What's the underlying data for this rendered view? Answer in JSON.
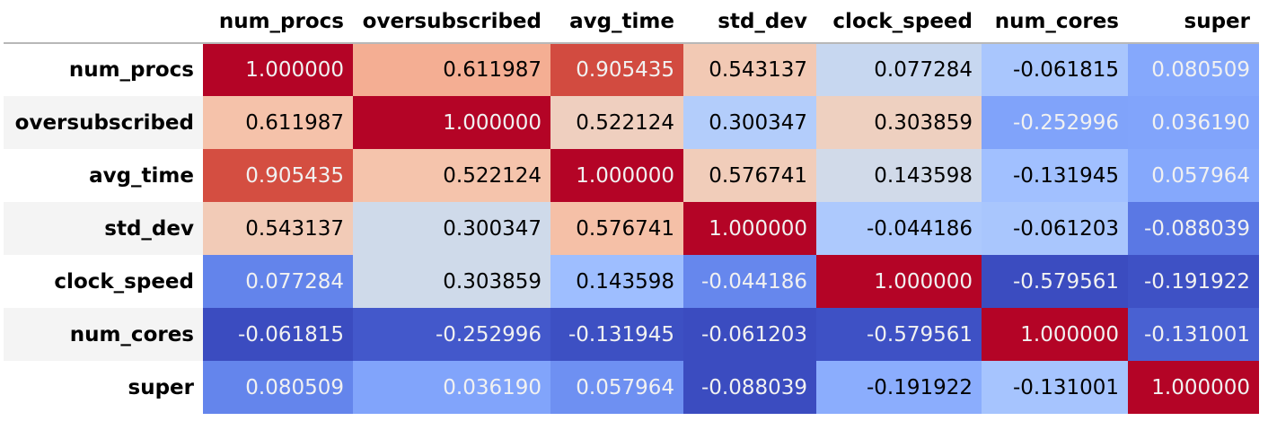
{
  "columns": [
    "num_procs",
    "oversubscribed",
    "avg_time",
    "std_dev",
    "clock_speed",
    "num_cores",
    "super"
  ],
  "rows": [
    {
      "label": "num_procs",
      "cells": [
        {
          "text": "1.000000",
          "bg": "#b40426",
          "fg": "#f1f1f1"
        },
        {
          "text": "0.611987",
          "bg": "#f4ae93",
          "fg": "#000000"
        },
        {
          "text": "0.905435",
          "bg": "#d24b40",
          "fg": "#f1f1f1"
        },
        {
          "text": "0.543137",
          "bg": "#f2c9b4",
          "fg": "#000000"
        },
        {
          "text": "0.077284",
          "bg": "#c7d7f0",
          "fg": "#000000"
        },
        {
          "text": "-0.061815",
          "bg": "#a9c6fd",
          "fg": "#000000"
        },
        {
          "text": "0.080509",
          "bg": "#85a8fc",
          "fg": "#f1f1f1"
        }
      ]
    },
    {
      "label": "oversubscribed",
      "cells": [
        {
          "text": "0.611987",
          "bg": "#f5c2aa",
          "fg": "#000000"
        },
        {
          "text": "1.000000",
          "bg": "#b40426",
          "fg": "#f1f1f1"
        },
        {
          "text": "0.522124",
          "bg": "#efcfbf",
          "fg": "#000000"
        },
        {
          "text": "0.300347",
          "bg": "#b3cdfb",
          "fg": "#000000"
        },
        {
          "text": "0.303859",
          "bg": "#eed0c0",
          "fg": "#000000"
        },
        {
          "text": "-0.252996",
          "bg": "#80a3fa",
          "fg": "#f1f1f1"
        },
        {
          "text": "0.036190",
          "bg": "#81a4fb",
          "fg": "#f1f1f1"
        }
      ]
    },
    {
      "label": "avg_time",
      "cells": [
        {
          "text": "0.905435",
          "bg": "#d44e41",
          "fg": "#f1f1f1"
        },
        {
          "text": "0.522124",
          "bg": "#f5c4ac",
          "fg": "#000000"
        },
        {
          "text": "1.000000",
          "bg": "#b40426",
          "fg": "#f1f1f1"
        },
        {
          "text": "0.576741",
          "bg": "#f1cdba",
          "fg": "#000000"
        },
        {
          "text": "0.143598",
          "bg": "#d1dae9",
          "fg": "#000000"
        },
        {
          "text": "-0.131945",
          "bg": "#a1c0ff",
          "fg": "#000000"
        },
        {
          "text": "0.057964",
          "bg": "#85a8fc",
          "fg": "#f1f1f1"
        }
      ]
    },
    {
      "label": "std_dev",
      "cells": [
        {
          "text": "0.543137",
          "bg": "#f2cbb7",
          "fg": "#000000"
        },
        {
          "text": "0.300347",
          "bg": "#cfdaea",
          "fg": "#000000"
        },
        {
          "text": "0.576741",
          "bg": "#f5c0a7",
          "fg": "#000000"
        },
        {
          "text": "1.000000",
          "bg": "#b40426",
          "fg": "#f1f1f1"
        },
        {
          "text": "-0.044186",
          "bg": "#adc9fd",
          "fg": "#000000"
        },
        {
          "text": "-0.061203",
          "bg": "#a9c6fd",
          "fg": "#000000"
        },
        {
          "text": "-0.088039",
          "bg": "#5a78e4",
          "fg": "#f1f1f1"
        }
      ]
    },
    {
      "label": "clock_speed",
      "cells": [
        {
          "text": "0.077284",
          "bg": "#6384eb",
          "fg": "#f1f1f1"
        },
        {
          "text": "0.303859",
          "bg": "#cfdaea",
          "fg": "#000000"
        },
        {
          "text": "0.143598",
          "bg": "#9ebeff",
          "fg": "#000000"
        },
        {
          "text": "-0.044186",
          "bg": "#6687ed",
          "fg": "#f1f1f1"
        },
        {
          "text": "1.000000",
          "bg": "#b40426",
          "fg": "#f1f1f1"
        },
        {
          "text": "-0.579561",
          "bg": "#3b4cc0",
          "fg": "#f1f1f1"
        },
        {
          "text": "-0.191922",
          "bg": "#3e51c5",
          "fg": "#f1f1f1"
        }
      ]
    },
    {
      "label": "num_cores",
      "cells": [
        {
          "text": "-0.061815",
          "bg": "#3b4cc0",
          "fg": "#f1f1f1"
        },
        {
          "text": "-0.252996",
          "bg": "#4358cb",
          "fg": "#f1f1f1"
        },
        {
          "text": "-0.131945",
          "bg": "#3d50c3",
          "fg": "#f1f1f1"
        },
        {
          "text": "-0.061203",
          "bg": "#3b4cc0",
          "fg": "#f1f1f1"
        },
        {
          "text": "-0.579561",
          "bg": "#3e51c5",
          "fg": "#f1f1f1"
        },
        {
          "text": "1.000000",
          "bg": "#b40426",
          "fg": "#f1f1f1"
        },
        {
          "text": "-0.131001",
          "bg": "#4961d2",
          "fg": "#f1f1f1"
        }
      ]
    },
    {
      "label": "super",
      "cells": [
        {
          "text": "0.080509",
          "bg": "#6485ec",
          "fg": "#f1f1f1"
        },
        {
          "text": "0.036190",
          "bg": "#81a4fb",
          "fg": "#f1f1f1"
        },
        {
          "text": "0.057964",
          "bg": "#6e90f2",
          "fg": "#f1f1f1"
        },
        {
          "text": "-0.088039",
          "bg": "#3b4cc0",
          "fg": "#f1f1f1"
        },
        {
          "text": "-0.191922",
          "bg": "#8badfd",
          "fg": "#000000"
        },
        {
          "text": "-0.131001",
          "bg": "#a6c4fe",
          "fg": "#000000"
        },
        {
          "text": "1.000000",
          "bg": "#b40426",
          "fg": "#f1f1f1"
        }
      ]
    }
  ]
}
